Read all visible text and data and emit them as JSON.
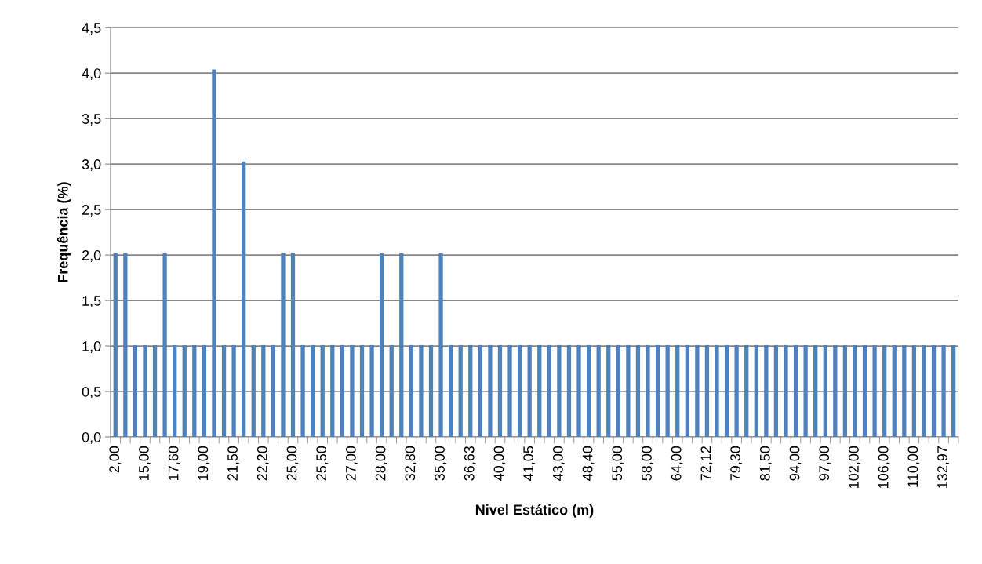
{
  "chart_data": {
    "type": "bar",
    "xlabel": "Nivel Estático (m)",
    "ylabel": "Frequência (%)",
    "categories": [
      "2,00",
      null,
      null,
      "15,00",
      null,
      null,
      "17,60",
      null,
      null,
      "19,00",
      null,
      null,
      "21,50",
      null,
      null,
      "22,20",
      null,
      null,
      "25,00",
      null,
      null,
      "25,50",
      null,
      null,
      "27,00",
      null,
      null,
      "28,00",
      null,
      null,
      "32,80",
      null,
      null,
      "35,00",
      null,
      null,
      "36,63",
      null,
      null,
      "40,00",
      null,
      null,
      "41,05",
      null,
      null,
      "43,00",
      null,
      null,
      "48,40",
      null,
      null,
      "55,00",
      null,
      null,
      "58,00",
      null,
      null,
      "64,00",
      null,
      null,
      "72,12",
      null,
      null,
      "79,30",
      null,
      null,
      "81,50",
      null,
      null,
      "94,00",
      null,
      null,
      "97,00",
      null,
      null,
      "102,00",
      null,
      null,
      "106,00",
      null,
      null,
      "110,00",
      null,
      null,
      "132,97",
      null
    ],
    "values": [
      2.02,
      2.02,
      1.01,
      1.01,
      1.01,
      2.02,
      1.01,
      1.01,
      1.01,
      1.01,
      4.04,
      1.01,
      1.01,
      3.03,
      1.01,
      1.01,
      1.01,
      2.02,
      2.02,
      1.01,
      1.01,
      1.01,
      1.01,
      1.01,
      1.01,
      1.01,
      1.01,
      2.02,
      1.01,
      2.02,
      1.01,
      1.01,
      1.01,
      2.02,
      1.01,
      1.01,
      1.01,
      1.01,
      1.01,
      1.01,
      1.01,
      1.01,
      1.01,
      1.01,
      1.01,
      1.01,
      1.01,
      1.01,
      1.01,
      1.01,
      1.01,
      1.01,
      1.01,
      1.01,
      1.01,
      1.01,
      1.01,
      1.01,
      1.01,
      1.01,
      1.01,
      1.01,
      1.01,
      1.01,
      1.01,
      1.01,
      1.01,
      1.01,
      1.01,
      1.01,
      1.01,
      1.01,
      1.01,
      1.01,
      1.01,
      1.01,
      1.01,
      1.01,
      1.01,
      1.01,
      1.01,
      1.01,
      1.01,
      1.01,
      1.01,
      1.01
    ],
    "color": "#4f81bd",
    "ylim": [
      0,
      4.5
    ],
    "yticks": [
      {
        "value": 0,
        "label": "0,0"
      },
      {
        "value": 0.5,
        "label": "0,5"
      },
      {
        "value": 1,
        "label": "1,0"
      },
      {
        "value": 1.5,
        "label": "1,5"
      },
      {
        "value": 2,
        "label": "2,0"
      },
      {
        "value": 2.5,
        "label": "2,5"
      },
      {
        "value": 3,
        "label": "3,0"
      },
      {
        "value": 3.5,
        "label": "3,5"
      },
      {
        "value": 4,
        "label": "4,0"
      },
      {
        "value": 4.5,
        "label": "4,5"
      }
    ],
    "grid": "y"
  }
}
